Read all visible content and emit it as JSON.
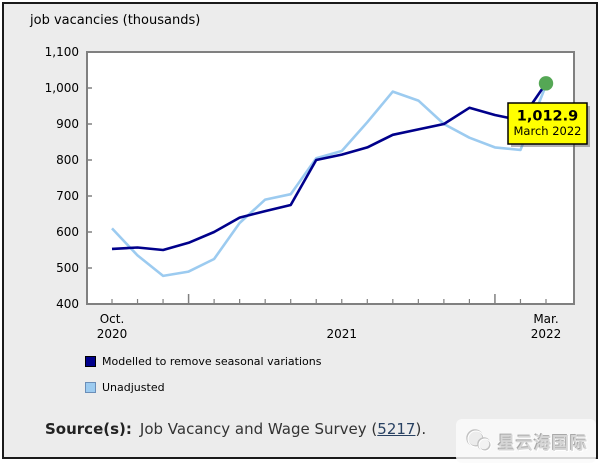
{
  "title": "job vacancies (thousands)",
  "chart_data": {
    "type": "line",
    "x": [
      "Oct 2020",
      "Nov 2020",
      "Dec 2020",
      "Jan 2021",
      "Feb 2021",
      "Mar 2021",
      "Apr 2021",
      "May 2021",
      "Jun 2021",
      "Jul 2021",
      "Aug 2021",
      "Sep 2021",
      "Oct 2021",
      "Nov 2021",
      "Dec 2021",
      "Jan 2022",
      "Feb 2022",
      "Mar 2022"
    ],
    "series": [
      {
        "name": "Modelled to remove seasonal variations",
        "color": "#00008B",
        "values": [
          553,
          557,
          550,
          570,
          600,
          640,
          658,
          675,
          800,
          815,
          835,
          870,
          885,
          900,
          945,
          925,
          910,
          1012.9
        ]
      },
      {
        "name": "Unadjusted",
        "color": "#9CCBF0",
        "values": [
          610,
          535,
          478,
          490,
          525,
          625,
          690,
          705,
          805,
          825,
          905,
          990,
          965,
          900,
          862,
          835,
          828,
          1008
        ]
      }
    ],
    "ylabel": "job vacancies (thousands)",
    "ylim": [
      400,
      1100
    ],
    "ytick_step": 100,
    "ytick_labels_top_to_bottom": [
      "1,100",
      "1,000",
      "900",
      "800",
      "700",
      "600",
      "500",
      "400"
    ],
    "xtick_major_indices": [
      3,
      15
    ],
    "x_axis_label_groups": [
      {
        "index": 0,
        "top": "Oct.",
        "bottom": "2020"
      },
      {
        "index": 9,
        "top": "",
        "bottom": "2021"
      },
      {
        "index": 17,
        "top": "Mar.",
        "bottom": "2022"
      }
    ],
    "grid": false,
    "legend_position": "below-left",
    "end_marker": {
      "series_index": 0,
      "point_index": 17,
      "color": "#55A755"
    }
  },
  "callout": {
    "value": "1,012.9",
    "date": "March 2022",
    "bg": "#FFFF00",
    "border": "#000000"
  },
  "legend": {
    "items": [
      {
        "label": "Modelled to remove seasonal variations",
        "swatch_color": "#00008B",
        "swatch_border": "#000000"
      },
      {
        "label": "Unadjusted",
        "swatch_color": "#9CCBF0",
        "swatch_border": "#6B8EB8"
      }
    ]
  },
  "source": {
    "label": "Source(s):",
    "prefix": "Job Vacancy and Wage Survey (",
    "link": "5217",
    "suffix": ")."
  },
  "watermark": {
    "text": "星云海国际"
  },
  "colors": {
    "page_bg": "#ECECEC",
    "plot_bg": "#FFFFFF",
    "axis": "#808080",
    "text": "#000000"
  }
}
